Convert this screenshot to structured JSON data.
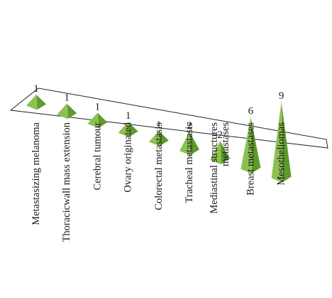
{
  "chart_data": {
    "type": "bar",
    "bar_shape": "pyramid",
    "projection": "3d-perspective",
    "categories": [
      [
        "Metastasizing melanoma"
      ],
      [
        "Thoracicwall mass extension"
      ],
      [
        "Cerebral tumour"
      ],
      [
        "Ovary originated"
      ],
      [
        "Colorectal metastasis"
      ],
      [
        "Tracheal metastasis"
      ],
      [
        "Mediastinal structures",
        "metastases"
      ],
      [
        "Breast metastases"
      ],
      [
        "Mesotheliomas"
      ]
    ],
    "values": [
      1,
      1,
      1,
      1,
      1,
      2,
      2,
      6,
      9
    ],
    "data_labels": [
      "1",
      "1",
      "1",
      "1",
      "1",
      "2",
      "2",
      "6",
      "9"
    ],
    "title": "",
    "xlabel": "",
    "ylabel": "",
    "ylim": [
      0,
      9
    ],
    "grid": false,
    "legend": "none",
    "colors": {
      "bar_light": "#8cc152",
      "bar_dark": "#5e9a2c",
      "bar_highlight": "#a9d470",
      "floor_line": "#222222",
      "text": "#1a1a1a"
    }
  }
}
